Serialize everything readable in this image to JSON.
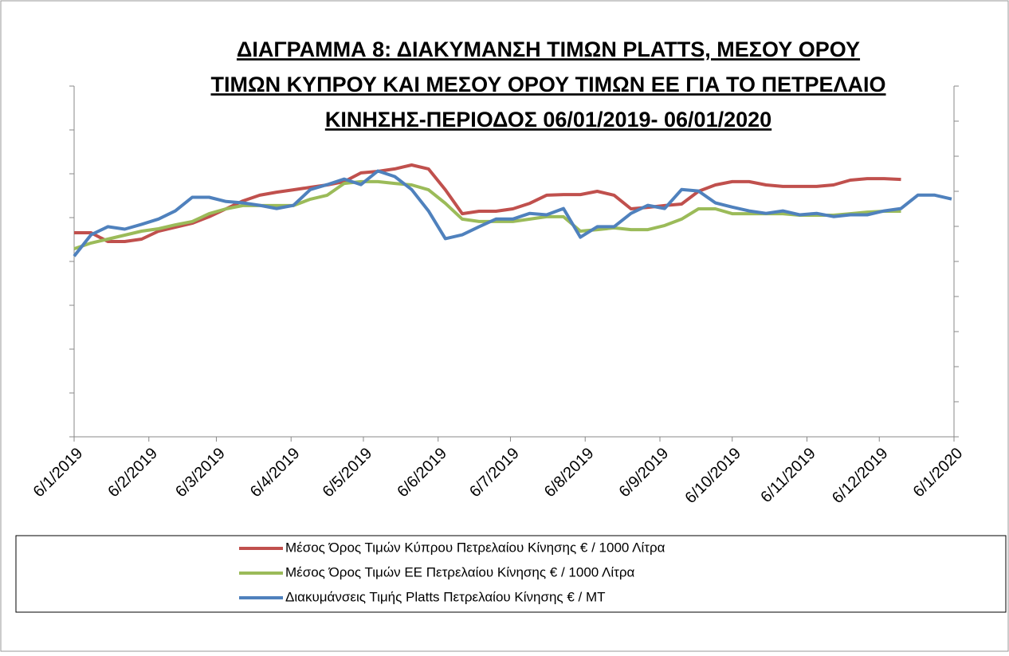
{
  "chart_data": {
    "type": "line",
    "title_lines": [
      "ΔΙΑΓΡΑΜΜΑ 8: ΔΙΑΚΥΜΑΝΣΗ ΤΙΜΩΝ PLATTS, ΜΕΣΟΥ ΟΡΟΥ",
      "ΤΙΜΩΝ ΚΥΠΡΟΥ ΚΑΙ ΜΕΣΟΥ ΟΡΟΥ ΤΙΜΩΝ ΕΕ ΓΙΑ ΤΟ ΠΕΤΡΕΛΑΙΟ",
      "ΚΙΝΗΣΗΣ-ΠΕΡΙΟΔΟΣ  06/01/2019- 06/01/2020"
    ],
    "x": [
      "2019-01-06",
      "2019-01-13",
      "2019-01-20",
      "2019-01-27",
      "2019-02-03",
      "2019-02-10",
      "2019-02-17",
      "2019-02-24",
      "2019-03-03",
      "2019-03-10",
      "2019-03-17",
      "2019-03-24",
      "2019-03-31",
      "2019-04-07",
      "2019-04-14",
      "2019-04-21",
      "2019-04-28",
      "2019-05-05",
      "2019-05-12",
      "2019-05-19",
      "2019-05-26",
      "2019-06-02",
      "2019-06-09",
      "2019-06-16",
      "2019-06-23",
      "2019-06-30",
      "2019-07-07",
      "2019-07-14",
      "2019-07-21",
      "2019-07-28",
      "2019-08-04",
      "2019-08-11",
      "2019-08-18",
      "2019-08-25",
      "2019-09-01",
      "2019-09-08",
      "2019-09-15",
      "2019-09-22",
      "2019-09-29",
      "2019-10-06",
      "2019-10-13",
      "2019-10-20",
      "2019-10-27",
      "2019-11-03",
      "2019-11-10",
      "2019-11-17",
      "2019-11-24",
      "2019-12-01",
      "2019-12-08",
      "2019-12-15",
      "2019-12-22",
      "2019-12-29",
      "2020-01-05"
    ],
    "xlim": [
      "2019-01-06",
      "2020-01-06"
    ],
    "xticks": [
      {
        "value": "2019-01-06",
        "label": "6/1/2019"
      },
      {
        "value": "2019-02-06",
        "label": "6/2/2019"
      },
      {
        "value": "2019-03-06",
        "label": "6/3/2019"
      },
      {
        "value": "2019-04-06",
        "label": "6/4/2019"
      },
      {
        "value": "2019-05-06",
        "label": "6/5/2019"
      },
      {
        "value": "2019-06-06",
        "label": "6/6/2019"
      },
      {
        "value": "2019-07-06",
        "label": "6/7/2019"
      },
      {
        "value": "2019-08-06",
        "label": "6/8/2019"
      },
      {
        "value": "2019-09-06",
        "label": "6/9/2019"
      },
      {
        "value": "2019-10-06",
        "label": "6/10/2019"
      },
      {
        "value": "2019-11-06",
        "label": "6/11/2019"
      },
      {
        "value": "2019-12-06",
        "label": "6/12/2019"
      },
      {
        "value": "2020-01-06",
        "label": "6/1/2020"
      }
    ],
    "ylim": [
      0,
      1600
    ],
    "yticks": [
      0,
      200,
      400,
      600,
      800,
      1000,
      1200,
      1400,
      1600
    ],
    "y2lim": [
      0,
      1000
    ],
    "y2ticks": [
      0,
      100,
      200,
      300,
      400,
      500,
      600,
      700,
      800,
      900,
      1000
    ],
    "series": [
      {
        "name": "Μέσος Όρος Τιμών Κύπρου Πετρελαίου Κίνησης  € / 1000 Λίτρα",
        "color": "#c0504d",
        "values": [
          931,
          931,
          891,
          891,
          902,
          938,
          956,
          974,
          1004,
          1040,
          1076,
          1102,
          1116,
          1127,
          1138,
          1149,
          1164,
          1204,
          1211,
          1222,
          1240,
          1222,
          1127,
          1018,
          1029,
          1029,
          1040,
          1065,
          1102,
          1105,
          1105,
          1120,
          1102,
          1040,
          1047,
          1055,
          1062,
          1120,
          1149,
          1164,
          1164,
          1149,
          1142,
          1142,
          1142,
          1149,
          1171,
          1178,
          1178,
          1174,
          null,
          null,
          null
        ]
      },
      {
        "name": "Μέσος Όρος Τιμών ΕΕ Πετρελαίου Κίνησης   € / 1000 Λίτρα",
        "color": "#9bbb59",
        "values": [
          858,
          884,
          902,
          920,
          938,
          949,
          967,
          982,
          1018,
          1040,
          1055,
          1055,
          1055,
          1055,
          1084,
          1102,
          1156,
          1164,
          1164,
          1156,
          1149,
          1127,
          1065,
          993,
          982,
          982,
          982,
          993,
          1004,
          1004,
          938,
          945,
          953,
          945,
          945,
          964,
          993,
          1040,
          1040,
          1018,
          1018,
          1018,
          1018,
          1011,
          1011,
          1011,
          1018,
          1025,
          1029,
          1029,
          null,
          null,
          null
        ]
      },
      {
        "name": "Διακυμάνσεις Τιμής Platts Πετρελαίου Κίνησης € / MT",
        "color": "#4f81bd",
        "axis": "y2",
        "values": [
          515,
          576,
          599,
          592,
          606,
          621,
          644,
          683,
          683,
          671,
          667,
          660,
          651,
          660,
          705,
          719,
          735,
          719,
          758,
          742,
          705,
          644,
          565,
          576,
          599,
          621,
          621,
          637,
          633,
          651,
          569,
          599,
          599,
          637,
          660,
          651,
          705,
          701,
          667,
          655,
          644,
          637,
          644,
          633,
          637,
          628,
          633,
          633,
          644,
          651,
          689,
          689,
          678
        ]
      }
    ]
  }
}
